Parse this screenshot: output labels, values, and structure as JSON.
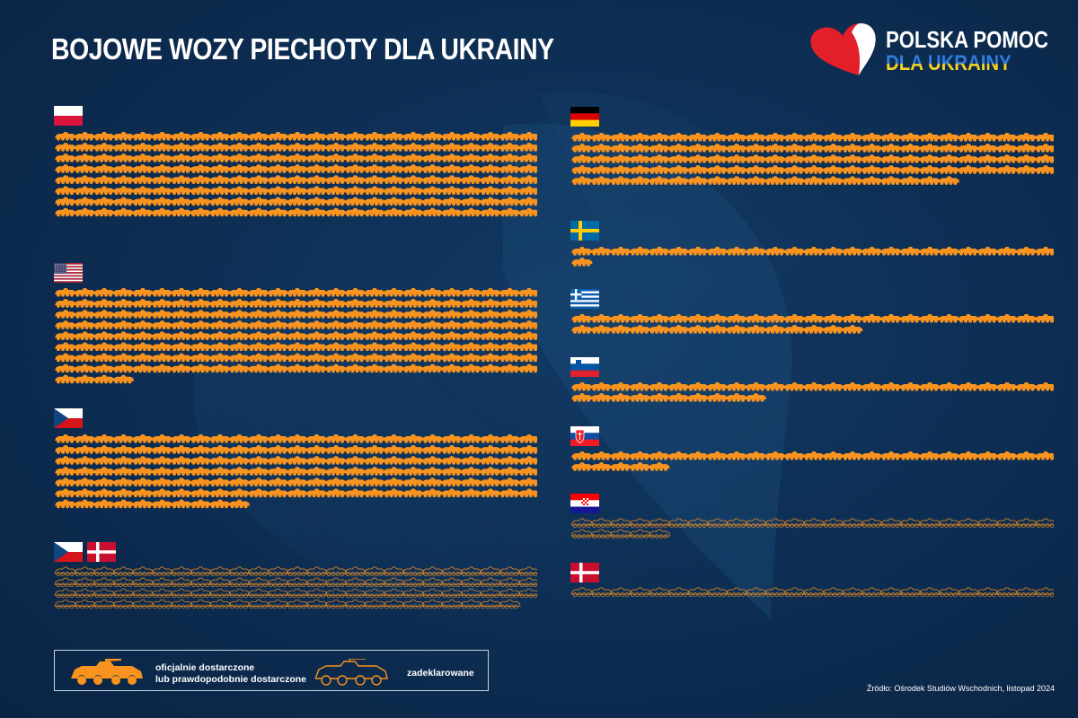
{
  "title": "BOJOWE WOZY PIECHOTY DLA UKRAINY",
  "logo": {
    "line1": "POLSKA POMOC",
    "line2": "DLA UKRAINY",
    "heart_color": "#e3202a",
    "line2_blue": "#2f7be0",
    "line2_yellow": "#f5d422"
  },
  "colors": {
    "background": "#0d2d52",
    "vehicle": "#f7931e",
    "legend_border": "#c9d3de"
  },
  "legend": {
    "filled_line1": "oficjalnie dostarczone",
    "filled_line2": "lub prawdopodobnie dostarczone",
    "outline_label": "zadeklarowane"
  },
  "source": "Źródło: Ośrodek Studiów Wschodnich, listopad 2024",
  "chart_data": {
    "type": "pictogram",
    "unit_icon": "infantry-fighting-vehicle-icon",
    "series": [
      {
        "flags": [
          "poland-flag-icon"
        ],
        "values": [
          {
            "status": "filled",
            "count": 200
          }
        ]
      },
      {
        "flags": [
          "usa-flag-icon"
        ],
        "values": [
          {
            "status": "filled",
            "count": 204
          }
        ]
      },
      {
        "flags": [
          "czechia-flag-icon"
        ],
        "values": [
          {
            "status": "filled",
            "count": 160
          }
        ]
      },
      {
        "flags": [
          "czechia-flag-icon",
          "denmark-flag-icon"
        ],
        "values": [
          {
            "status": "outline",
            "count": 99
          }
        ]
      },
      {
        "flags": [
          "germany-flag-icon"
        ],
        "values": [
          {
            "status": "filled",
            "count": 120
          }
        ]
      },
      {
        "flags": [
          "sweden-flag-icon"
        ],
        "values": [
          {
            "status": "filled",
            "count": 26
          }
        ]
      },
      {
        "flags": [
          "greece-flag-icon"
        ],
        "values": [
          {
            "status": "filled",
            "count": 40
          }
        ]
      },
      {
        "flags": [
          "slovenia-flag-icon"
        ],
        "values": [
          {
            "status": "filled",
            "count": 35
          }
        ]
      },
      {
        "flags": [
          "slovakia-flag-icon"
        ],
        "values": [
          {
            "status": "filled",
            "count": 30
          }
        ]
      },
      {
        "flags": [
          "croatia-flag-icon"
        ],
        "values": [
          {
            "status": "outline",
            "count": 30
          }
        ]
      },
      {
        "flags": [
          "denmark-flag-icon"
        ],
        "values": [
          {
            "status": "outline",
            "count": 25
          }
        ]
      }
    ]
  }
}
